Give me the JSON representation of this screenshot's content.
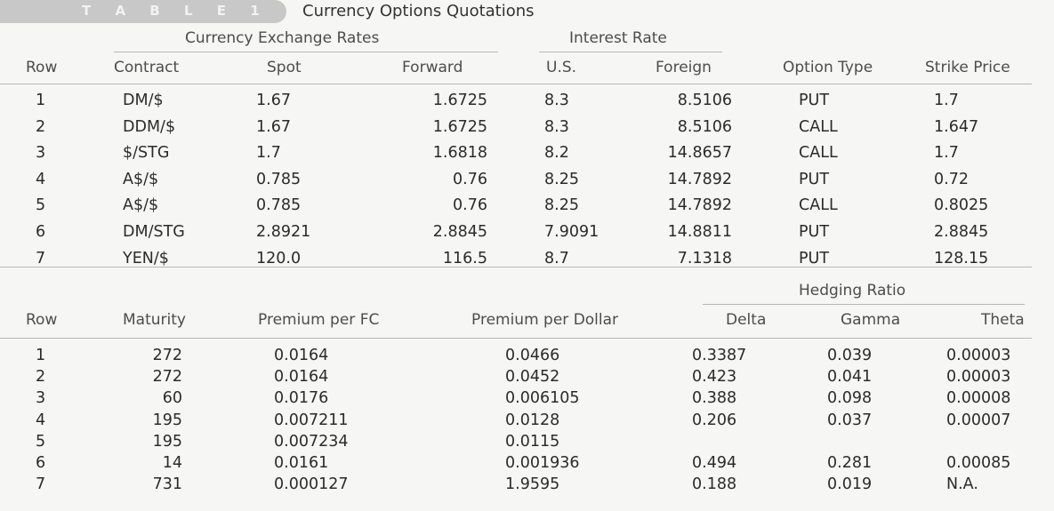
{
  "table_label": "T A B L E 1",
  "title": "Currency Options Quotations",
  "table1": {
    "groups": {
      "exchange": "Currency Exchange Rates",
      "interest": "Interest Rate"
    },
    "headers": [
      "Row",
      "Contract",
      "Spot",
      "Forward",
      "U.S.",
      "Foreign",
      "Option Type",
      "Strike Price"
    ],
    "rows": [
      [
        "1",
        "DM/$",
        "1.67",
        "1.6725",
        "8.3",
        "8.5106",
        "PUT",
        "1.7"
      ],
      [
        "2",
        "DDM/$",
        "1.67",
        "1.6725",
        "8.3",
        "8.5106",
        "CALL",
        "1.647"
      ],
      [
        "3",
        "$/STG",
        "1.7",
        "1.6818",
        "8.2",
        "14.8657",
        "CALL",
        "1.7"
      ],
      [
        "4",
        "A$/$",
        "0.785",
        "0.76",
        "8.25",
        "14.7892",
        "PUT",
        "0.72"
      ],
      [
        "5",
        "A$/$",
        "0.785",
        "0.76",
        "8.25",
        "14.7892",
        "CALL",
        "0.8025"
      ],
      [
        "6",
        "DM/STG",
        "2.8921",
        "2.8845",
        "7.9091",
        "14.8811",
        "PUT",
        "2.8845"
      ],
      [
        "7",
        "YEN/$",
        "120.0",
        "116.5",
        "8.7",
        "7.1318",
        "PUT",
        "128.15"
      ]
    ]
  },
  "table2": {
    "groups": {
      "hedging": "Hedging Ratio"
    },
    "headers": [
      "Row",
      "Maturity",
      "Premium per FC",
      "Premium per Dollar",
      "Delta",
      "Gamma",
      "Theta"
    ],
    "rows": [
      [
        "1",
        "272",
        "0.0164",
        "0.0466",
        "0.3387",
        "0.039",
        "0.00003"
      ],
      [
        "2",
        "272",
        "0.0164",
        "0.0452",
        "0.423",
        "0.041",
        "0.00003"
      ],
      [
        "3",
        "60",
        "0.0176",
        "0.006105",
        "0.388",
        "0.098",
        "0.00008"
      ],
      [
        "4",
        "195",
        "0.007211",
        "0.0128",
        "0.206",
        "0.037",
        "0.00007"
      ],
      [
        "5",
        "195",
        "0.007234",
        "0.0115",
        "",
        "",
        ""
      ],
      [
        "6",
        "14",
        "0.0161",
        "0.001936",
        "0.494",
        "0.281",
        "0.00085"
      ],
      [
        "7",
        "731",
        "0.000127",
        "1.9595",
        "0.188",
        "0.019",
        "N.A."
      ]
    ]
  }
}
